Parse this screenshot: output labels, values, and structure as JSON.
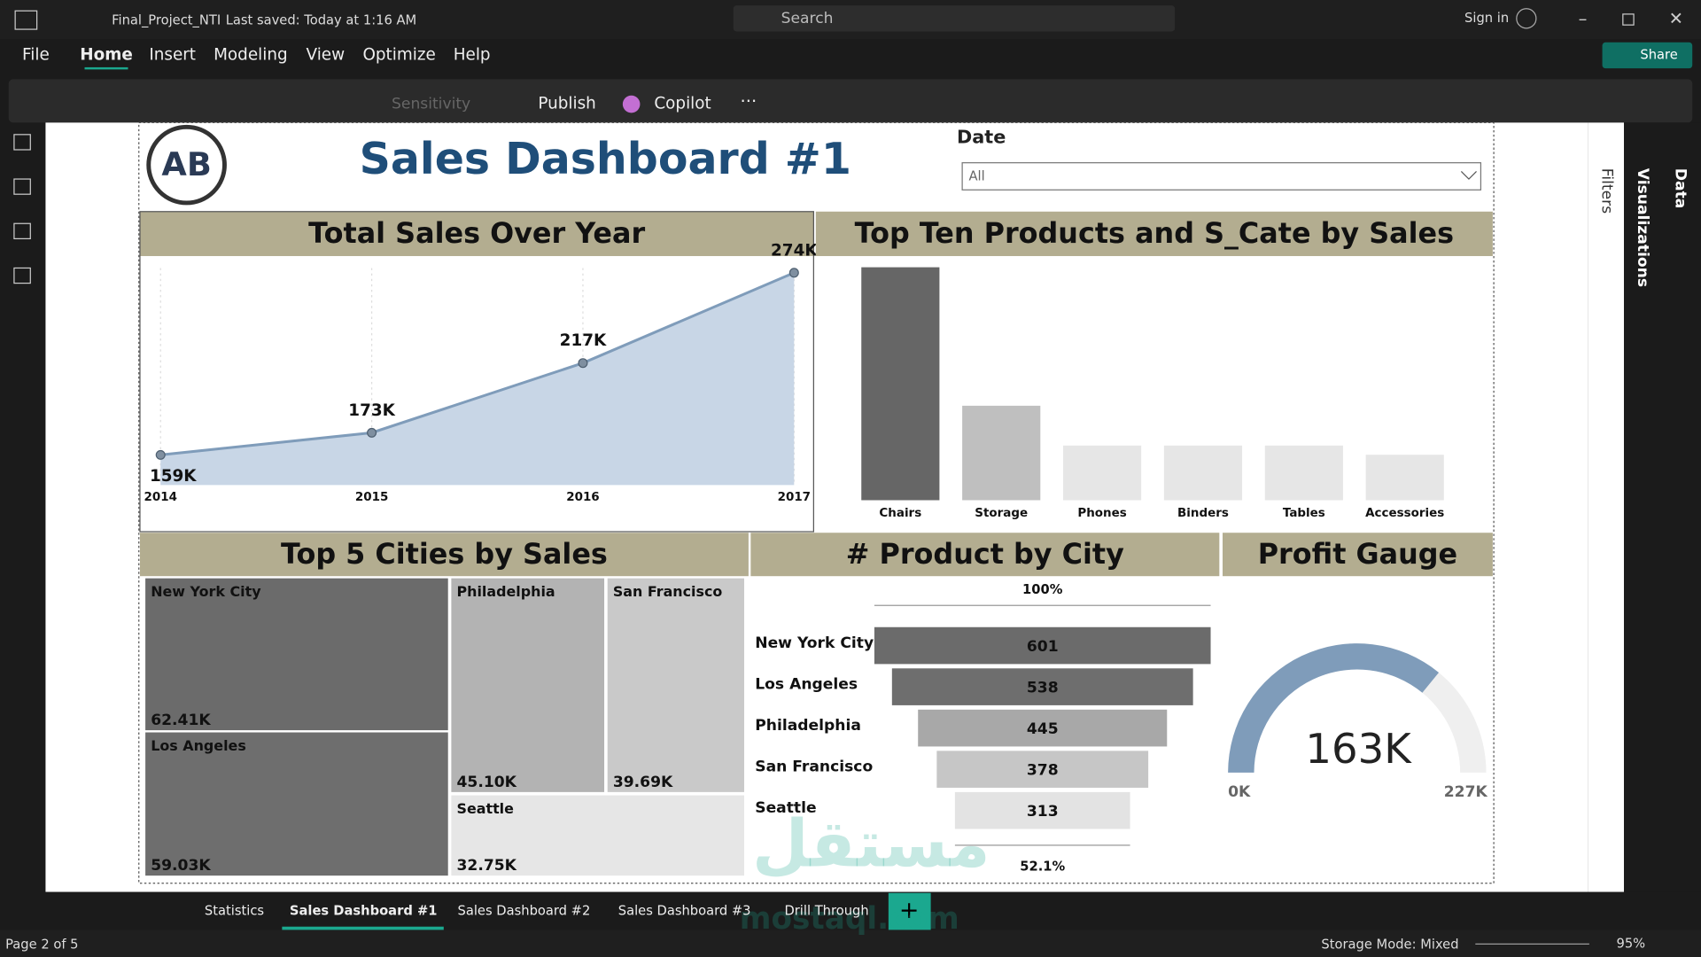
{
  "title_bar": {
    "file_name": "Final_Project_NTI",
    "saved": "Last saved: Today at 1:16 AM",
    "search": "Search",
    "sign_in": "Sign in"
  },
  "menu": [
    "File",
    "Home",
    "Insert",
    "Modeling",
    "View",
    "Optimize",
    "Help"
  ],
  "share": "Share",
  "ribbon": {
    "sensitivity": "Sensitivity",
    "publish": "Publish",
    "copilot": "Copilot"
  },
  "report": {
    "logo": "AB",
    "title": "Sales Dashboard #1",
    "date_filter": {
      "label": "Date",
      "value": "All"
    },
    "line_chart": {
      "type": "area",
      "title": "Total Sales Over Year",
      "x": [
        2014,
        2015,
        2016,
        2017
      ],
      "values": [
        159000,
        173000,
        217000,
        274000
      ],
      "value_labels": [
        "159K",
        "173K",
        "217K",
        "274K"
      ],
      "xlim": [
        2014,
        2017
      ],
      "ylim": [
        140000,
        277000
      ],
      "color": "#7f9cba"
    },
    "bar_chart": {
      "type": "bar",
      "title": "Top Ten Products and S_Cate by Sales",
      "categories": [
        "Chairs",
        "Storage",
        "Phones",
        "Binders",
        "Tables",
        "Accessories"
      ],
      "values": [
        328000,
        133000,
        77000,
        77000,
        77000,
        64000
      ],
      "ylim": [
        0,
        330000
      ],
      "colors": [
        "#666666",
        "#bfbfbf",
        "#e6e6e6",
        "#e6e6e6",
        "#e6e6e6",
        "#e6e6e6"
      ]
    },
    "treemap": {
      "type": "treemap",
      "title": "Top 5 Cities by Sales",
      "categories": [
        "New York City",
        "Los Angeles",
        "Philadelphia",
        "San Francisco",
        "Seattle"
      ],
      "values": [
        62410,
        59030,
        45100,
        39690,
        32750
      ],
      "value_labels": [
        "62.41K",
        "59.03K",
        "45.10K",
        "39.69K",
        "32.75K"
      ],
      "colors": [
        "#6b6b6b",
        "#6e6e6e",
        "#b3b3b3",
        "#c9c9c9",
        "#e6e6e6"
      ]
    },
    "funnel": {
      "type": "funnel",
      "title": "# Product by City",
      "categories": [
        "New York City",
        "Los Angeles",
        "Philadelphia",
        "San Francisco",
        "Seattle"
      ],
      "values": [
        601,
        538,
        445,
        378,
        313
      ],
      "top_label": "100%",
      "bottom_label": "52.1%",
      "colors": [
        "#6b6b6b",
        "#6e6e6e",
        "#a8a8a8",
        "#c6c6c6",
        "#e3e3e3"
      ]
    },
    "gauge": {
      "type": "gauge",
      "title": "Profit Gauge",
      "value": 163000,
      "value_label": "163K",
      "min": 0,
      "max": 227000,
      "min_label": "0K",
      "max_label": "227K",
      "color": "#7f9cba"
    }
  },
  "panes": [
    "Filters",
    "Visualizations",
    "Data"
  ],
  "pages": [
    "Statistics",
    "Sales Dashboard #1",
    "Sales Dashboard #2",
    "Sales Dashboard #3",
    "Drill Through"
  ],
  "watermark": [
    "مستقل",
    "mostaql.com"
  ],
  "status": {
    "page": "Page 2 of 5",
    "storage": "Storage Mode: Mixed",
    "zoom": "95%"
  }
}
